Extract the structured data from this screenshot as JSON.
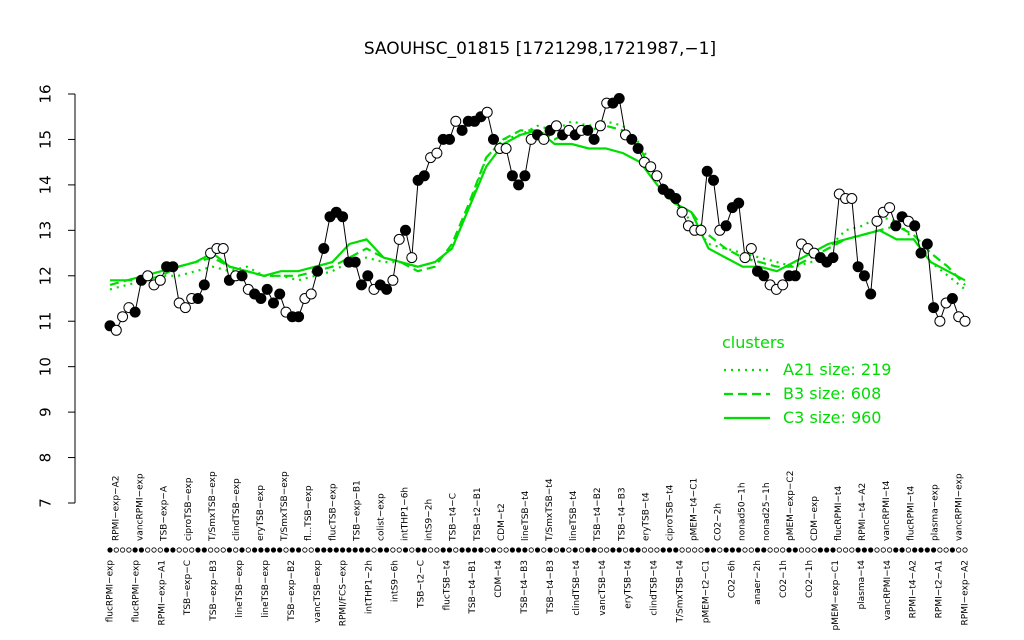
{
  "chart_data": {
    "type": "line",
    "title": "SAOUHSC_01815 [1721298,1721987,−1]",
    "xlabel": "",
    "ylabel": "",
    "ylim": [
      7,
      16
    ],
    "yticks": [
      7,
      8,
      9,
      10,
      11,
      12,
      13,
      14,
      15,
      16
    ],
    "x_labels_upper": [
      "RPMI−exp−A2",
      "vancRPMI−exp",
      "TSB−exp−A",
      "ciproTSB−exp",
      "T/SmxTSB−exp",
      "clindTSB−exp",
      "eryTSB−exp",
      "T/SmxTSB−exp",
      "fl...TSB−exp",
      "flucTSB−exp",
      "TSB−exp−B1",
      "colist−exp",
      "intTHP1−6h",
      "intS9−2h",
      "TSB−t4−C",
      "TSB−t2−B1",
      "CDM−t2",
      "lineTSB−t4",
      "T/SmxTSB−t4",
      "lineTSB−t4",
      "TSB−t4−B2",
      "TSB−t4−B3",
      "eryTSB−t4",
      "ciproTSB−t4",
      "pMEM−t4−C1",
      "CO2−2h",
      "nonad50−1h",
      "nonad25−1h",
      "pMEM−exp−C2",
      "CDM−exp",
      "flucRPMI−t4",
      "RPMI−t4−A2",
      "vancRPMI−t4",
      "flucRPMI−t4",
      "plasma−exp",
      "vancRPMI−exp"
    ],
    "x_labels_lower": [
      "flucRPMI−exp",
      "flucRPMI−exp",
      "RPMI−exp−A1",
      "TSB−exp−C",
      "TSB−exp−B3",
      "lineTSB−exp",
      "lineTSB−exp",
      "TSB−exp−B2",
      "vancTSB−exp",
      "RPMI/FCS−exp",
      "intTHP1−2h",
      "intS9−6h",
      "TSB−t2−C",
      "flucTSB−t4",
      "TSB−t4−B1",
      "CDM−t4",
      "TSB−t4−B3",
      "TSB−t4−B3",
      "clindTSB−t4",
      "vancTSB−t4",
      "eryTSB−t4",
      "clindTSB−t4",
      "T/SmxTSB−t4",
      "pMEM−t2−C1",
      "CO2−6h",
      "anaer−2h",
      "CO2−1h",
      "CO2−1h",
      "pMEM−exp−C1",
      "plasma−t4",
      "vancRPMI−t4",
      "RPMI−t4−A2",
      "RPMI−t2−A1",
      "RPMI−exp−A2"
    ],
    "series": [
      {
        "name": "A21 size: 219",
        "style": "dotted",
        "color": "#00dd00",
        "values": [
          11.7,
          11.8,
          11.9,
          12.0,
          12.0,
          12.1,
          12.2,
          12.1,
          12.2,
          12.0,
          12.0,
          11.9,
          12.0,
          12.1,
          12.3,
          12.4,
          12.3,
          12.3,
          12.2,
          12.3,
          12.6,
          13.5,
          14.6,
          15.0,
          15.1,
          15.3,
          15.2,
          15.4,
          15.3,
          15.4,
          15.3,
          14.9,
          14.2,
          13.6,
          13.2,
          12.7,
          12.6,
          12.5,
          12.4,
          12.3,
          12.2,
          12.3,
          12.6,
          13.0,
          13.1,
          13.3,
          13.2,
          12.8,
          12.3,
          12.0,
          11.7
        ]
      },
      {
        "name": "B3 size: 608",
        "style": "dashed",
        "color": "#00dd00",
        "values": [
          11.8,
          11.9,
          11.9,
          12.0,
          12.2,
          12.3,
          12.4,
          12.2,
          12.1,
          12.0,
          12.0,
          12.0,
          12.1,
          12.2,
          12.4,
          12.6,
          12.4,
          12.3,
          12.1,
          12.2,
          12.7,
          13.6,
          14.6,
          15.0,
          15.2,
          15.2,
          15.0,
          15.2,
          15.2,
          15.3,
          15.2,
          14.8,
          14.1,
          13.6,
          13.4,
          12.9,
          12.6,
          12.4,
          12.3,
          12.2,
          12.2,
          12.4,
          12.6,
          12.8,
          12.9,
          13.0,
          13.1,
          12.9,
          12.5,
          12.2,
          11.8
        ]
      },
      {
        "name": "C3 size: 960",
        "style": "solid",
        "color": "#00dd00",
        "values": [
          11.9,
          11.9,
          12.0,
          12.1,
          12.2,
          12.3,
          12.5,
          12.2,
          12.1,
          12.0,
          12.1,
          12.1,
          12.2,
          12.3,
          12.7,
          12.8,
          12.4,
          12.3,
          12.2,
          12.3,
          12.6,
          13.5,
          14.4,
          14.9,
          15.1,
          15.2,
          14.9,
          14.9,
          14.8,
          14.8,
          14.7,
          14.5,
          14.0,
          13.6,
          13.4,
          12.6,
          12.4,
          12.2,
          12.2,
          12.1,
          12.3,
          12.5,
          12.7,
          12.8,
          12.9,
          13.0,
          12.8,
          12.8,
          12.3,
          12.1,
          11.9
        ]
      }
    ],
    "observations": [
      10.9,
      10.8,
      11.1,
      11.3,
      11.2,
      11.9,
      12.0,
      11.8,
      11.9,
      12.2,
      12.2,
      11.4,
      11.3,
      11.5,
      11.5,
      11.8,
      12.5,
      12.6,
      12.6,
      11.9,
      12.0,
      12.0,
      11.7,
      11.6,
      11.5,
      11.7,
      11.4,
      11.6,
      11.2,
      11.1,
      11.1,
      11.5,
      11.6,
      12.1,
      12.6,
      13.3,
      13.4,
      13.3,
      12.3,
      12.3,
      11.8,
      12.0,
      11.7,
      11.8,
      11.7,
      11.9,
      12.8,
      13.0,
      12.4,
      14.1,
      14.2,
      14.6,
      14.7,
      15.0,
      15.0,
      15.4,
      15.2,
      15.4,
      15.4,
      15.5,
      15.6,
      15.0,
      14.8,
      14.8,
      14.2,
      14.0,
      14.2,
      15.0,
      15.1,
      15.0,
      15.2,
      15.3,
      15.1,
      15.2,
      15.1,
      15.2,
      15.2,
      15.0,
      15.3,
      15.8,
      15.8,
      15.9,
      15.1,
      15.0,
      14.8,
      14.5,
      14.4,
      14.2,
      13.9,
      13.8,
      13.7,
      13.4,
      13.1,
      13.0,
      13.0,
      14.3,
      14.1,
      13.0,
      13.1,
      13.5,
      13.6,
      12.4,
      12.6,
      12.1,
      12.0,
      11.8,
      11.7,
      11.8,
      12.0,
      12.0,
      12.7,
      12.6,
      12.5,
      12.4,
      12.3,
      12.4,
      13.8,
      13.7,
      13.7,
      12.2,
      12.0,
      11.6,
      13.2,
      13.4,
      13.5,
      13.1,
      13.3,
      13.2,
      13.1,
      12.5,
      12.7,
      11.3,
      11.0,
      11.4,
      11.5,
      11.1,
      11.0
    ],
    "observation_filled": [
      1,
      0,
      0,
      0,
      1,
      1,
      0,
      0,
      0,
      1,
      1,
      0,
      0,
      0,
      1,
      1,
      0,
      0,
      0,
      1,
      0,
      1,
      0,
      1,
      1,
      1,
      1,
      1,
      0,
      1,
      1,
      0,
      0,
      1,
      1,
      1,
      1,
      1,
      1,
      1,
      1,
      1,
      0,
      1,
      1,
      0,
      0,
      1,
      0,
      1,
      1,
      0,
      0,
      1,
      1,
      0,
      1,
      1,
      1,
      1,
      0,
      1,
      0,
      0,
      1,
      1,
      1,
      0,
      1,
      0,
      1,
      0,
      1,
      0,
      1,
      0,
      1,
      1,
      0,
      0,
      1,
      1,
      0,
      1,
      1,
      0,
      0,
      0,
      1,
      1,
      1,
      0,
      0,
      0,
      0,
      1,
      1,
      0,
      1,
      1,
      1,
      0,
      0,
      1,
      1,
      0,
      0,
      0,
      1,
      1,
      0,
      0,
      0,
      1,
      1,
      1,
      0,
      0,
      0,
      1,
      1,
      1,
      0,
      0,
      0,
      1,
      1,
      0,
      1,
      1,
      1,
      1,
      0,
      0,
      1,
      0,
      0
    ],
    "legend": {
      "title": "clusters",
      "placement": "bottom-right"
    },
    "grid": false,
    "colors": {
      "line": "#00dd00",
      "points": "#000000"
    }
  }
}
